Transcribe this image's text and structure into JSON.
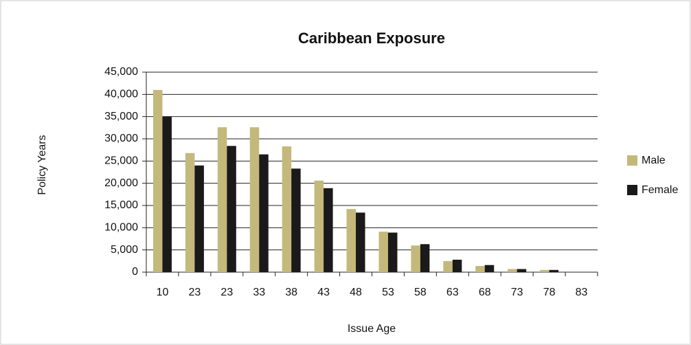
{
  "chart_data": {
    "type": "bar",
    "title": "Caribbean Exposure",
    "x_label": "Issue Age",
    "y_label": "Policy Years",
    "categories": [
      "10",
      "23",
      "23",
      "33",
      "38",
      "43",
      "48",
      "53",
      "58",
      "63",
      "68",
      "73",
      "78",
      "83"
    ],
    "series": [
      {
        "name": "Male",
        "color": "#c4b97b",
        "values": [
          41000,
          26800,
          32600,
          32600,
          28300,
          20600,
          14200,
          9100,
          6000,
          2500,
          1400,
          700,
          500,
          0
        ]
      },
      {
        "name": "Female",
        "color": "#1a1a1a",
        "values": [
          35000,
          24000,
          28400,
          26500,
          23300,
          18900,
          13400,
          8900,
          6300,
          2800,
          1600,
          700,
          500,
          0
        ]
      }
    ],
    "ylim": [
      0,
      45000
    ],
    "yticks": [
      0,
      {
        "value": 5000,
        "label": "5,000"
      },
      {
        "value": 10000,
        "label": "10,000"
      },
      {
        "value": 15000,
        "label": "15,000"
      },
      {
        "value": 20000,
        "label": "20,000"
      },
      {
        "value": 25000,
        "label": "25,000"
      },
      {
        "value": 30000,
        "label": "30,000"
      },
      {
        "value": 35000,
        "label": "35,000"
      },
      {
        "value": 40000,
        "label": "40,000"
      },
      {
        "value": 45000,
        "label": "45,000"
      }
    ],
    "grid": true,
    "legend": "right"
  }
}
